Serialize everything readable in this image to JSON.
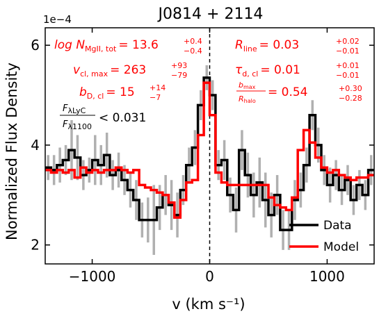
{
  "chart_data": {
    "type": "line",
    "title": "J0814 + 2114",
    "xlabel": "v (km s⁻¹)",
    "ylabel": "Normalized Flux Density",
    "y_multiplier": "1e−4",
    "xlim": [
      -1400,
      1400
    ],
    "ylim": [
      1.62,
      6.35
    ],
    "xticks": [
      -1000,
      0,
      1000
    ],
    "xtick_labels": [
      "−1000",
      "0",
      "1000"
    ],
    "yticks": [
      2,
      4,
      6
    ],
    "ytick_labels": [
      "2",
      "4",
      "6"
    ],
    "zero_line_x": 0,
    "series": [
      {
        "name": "Data",
        "color": "#000000",
        "x": [
          -1400,
          -1350,
          -1300,
          -1250,
          -1200,
          -1150,
          -1100,
          -1050,
          -1000,
          -950,
          -900,
          -850,
          -800,
          -750,
          -700,
          -650,
          -600,
          -550,
          -500,
          -450,
          -400,
          -350,
          -300,
          -250,
          -200,
          -150,
          -100,
          -50,
          0,
          50,
          100,
          150,
          200,
          250,
          300,
          350,
          400,
          450,
          500,
          550,
          600,
          650,
          700,
          750,
          800,
          850,
          900,
          950,
          1000,
          1050,
          1100,
          1150,
          1200,
          1250,
          1300,
          1350
        ],
        "y": [
          3.55,
          3.5,
          3.6,
          3.7,
          3.9,
          3.75,
          3.4,
          3.5,
          3.7,
          3.6,
          3.8,
          3.4,
          3.5,
          3.3,
          3.1,
          2.9,
          2.5,
          2.5,
          2.5,
          2.75,
          3.0,
          2.8,
          2.6,
          3.1,
          3.6,
          3.95,
          4.8,
          5.35,
          5.0,
          3.6,
          3.7,
          3.0,
          2.7,
          3.9,
          3.4,
          3.0,
          3.25,
          2.9,
          2.6,
          3.0,
          2.3,
          2.3,
          2.9,
          3.1,
          3.6,
          4.6,
          4.0,
          3.5,
          3.2,
          3.4,
          3.1,
          3.3,
          2.9,
          3.2,
          3.0,
          3.5
        ],
        "errors": [
          0.25,
          0.3,
          0.35,
          0.3,
          0.6,
          0.45,
          0.3,
          0.25,
          0.5,
          0.4,
          0.45,
          0.3,
          0.35,
          0.3,
          0.35,
          0.4,
          0.35,
          0.45,
          0.7,
          0.45,
          0.4,
          0.5,
          0.45,
          0.3,
          0.35,
          0.35,
          0.3,
          0.25,
          0.3,
          0.3,
          0.4,
          0.35,
          0.45,
          0.4,
          0.45,
          0.45,
          0.5,
          0.55,
          0.45,
          0.4,
          0.4,
          0.4,
          0.4,
          0.35,
          0.35,
          0.3,
          0.35,
          0.3,
          0.35,
          0.3,
          0.3,
          0.3,
          0.3,
          0.3,
          0.3,
          0.3
        ]
      },
      {
        "name": "Model",
        "color": "#ff0000",
        "x": [
          -1400,
          -1350,
          -1300,
          -1250,
          -1200,
          -1150,
          -1100,
          -1050,
          -1000,
          -950,
          -900,
          -850,
          -800,
          -750,
          -700,
          -650,
          -600,
          -550,
          -500,
          -450,
          -400,
          -350,
          -300,
          -250,
          -200,
          -150,
          -100,
          -50,
          0,
          50,
          100,
          150,
          200,
          250,
          300,
          350,
          400,
          450,
          500,
          550,
          600,
          650,
          700,
          750,
          800,
          850,
          900,
          950,
          1000,
          1050,
          1100,
          1150,
          1200,
          1250,
          1300,
          1350
        ],
        "y": [
          3.5,
          3.45,
          3.5,
          3.45,
          3.5,
          3.35,
          3.55,
          3.45,
          3.5,
          3.45,
          3.5,
          3.5,
          3.55,
          3.5,
          3.45,
          3.5,
          3.2,
          3.15,
          3.1,
          3.05,
          3.0,
          2.85,
          2.55,
          2.9,
          3.25,
          3.3,
          4.2,
          5.25,
          4.6,
          3.45,
          3.25,
          3.2,
          3.2,
          3.2,
          3.2,
          3.2,
          3.2,
          3.2,
          2.95,
          2.8,
          2.75,
          2.7,
          2.95,
          3.9,
          4.3,
          4.05,
          3.75,
          3.55,
          3.45,
          3.5,
          3.4,
          3.35,
          3.3,
          3.35,
          3.35,
          3.4
        ]
      }
    ],
    "legend": {
      "placement": "lower-right",
      "entries": [
        "Data",
        "Model"
      ]
    },
    "annotations": {
      "logN": {
        "lhs": "log N",
        "lhs_sub": "MgII, tot",
        "rhs": "= 13.6",
        "up": "+0.4",
        "down": "−0.4"
      },
      "vcl": {
        "lhs": "v",
        "lhs_sub": "cl, max",
        "rhs": "= 263",
        "up": "+93",
        "down": "−79"
      },
      "bD": {
        "lhs": "b",
        "lhs_sub": "D, cl",
        "rhs": "= 15",
        "up": "+14",
        "down": "−7"
      },
      "flux_ratio": {
        "num": "F",
        "num_sub": "λLyC",
        "den": "F",
        "den_sub": "λ1100",
        "rhs": "< 0.031"
      },
      "Rline": {
        "lhs": "R",
        "lhs_sub": "line",
        "rhs": "= 0.03",
        "up": "+0.02",
        "down": "−0.01"
      },
      "tau": {
        "lhs": "τ",
        "lhs_sub": "d, cl",
        "rhs": "= 0.01",
        "up": "+0.01",
        "down": "−0.01"
      },
      "bratio": {
        "num": "b",
        "num_sub": "max",
        "den": "R",
        "den_sub": "halo",
        "rhs": "= 0.54",
        "up": "+0.30",
        "down": "−0.28"
      }
    }
  }
}
